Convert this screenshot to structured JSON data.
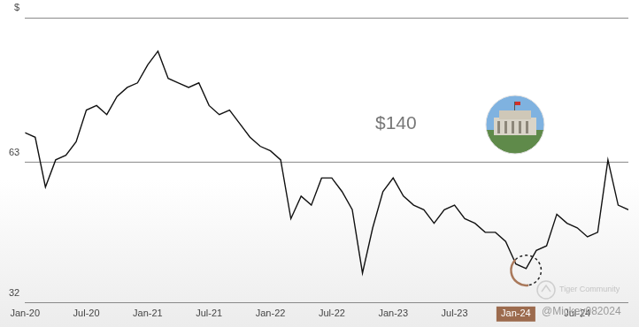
{
  "chart_data": {
    "type": "line",
    "categories": [
      "Jan-20",
      null,
      null,
      null,
      null,
      null,
      "Jul-20",
      null,
      null,
      null,
      null,
      null,
      "Jan-21",
      null,
      null,
      null,
      null,
      null,
      "Jul-21",
      null,
      null,
      null,
      null,
      null,
      "Jan-22",
      null,
      null,
      null,
      null,
      null,
      "Jul-22",
      null,
      null,
      null,
      null,
      null,
      "Jan-23",
      null,
      null,
      null,
      null,
      null,
      "Jul-23",
      null,
      null,
      null,
      null,
      null,
      "Jan-24",
      null,
      null,
      null,
      null,
      null,
      "Jul-24",
      null,
      null,
      null,
      null,
      null
    ],
    "values": [
      69.6,
      68.6,
      57.6,
      63.6,
      64.6,
      67.6,
      74.6,
      75.6,
      73.6,
      77.6,
      79.6,
      80.6,
      84.6,
      87.6,
      81.6,
      80.6,
      79.6,
      80.6,
      75.6,
      73.6,
      74.6,
      71.6,
      68.6,
      66.6,
      65.6,
      63.6,
      50.6,
      55.6,
      53.6,
      59.6,
      59.6,
      56.6,
      52.6,
      38.6,
      48.6,
      56.6,
      59.6,
      55.6,
      53.6,
      52.6,
      49.6,
      52.6,
      53.6,
      50.6,
      49.6,
      47.6,
      47.6,
      45.6,
      40.6,
      39.6,
      43.6,
      44.6,
      51.6,
      49.6,
      48.6,
      46.6,
      47.6,
      63.6,
      53.6,
      52.6
    ],
    "color": "#111111",
    "ylim": [
      32,
      95
    ],
    "yticks": [
      32,
      63,
      {
        "value": 95,
        "label": "$"
      }
    ],
    "grid": true,
    "annotations": [
      "$140",
      "Tiger Community",
      "@Mickey082024"
    ]
  }
}
